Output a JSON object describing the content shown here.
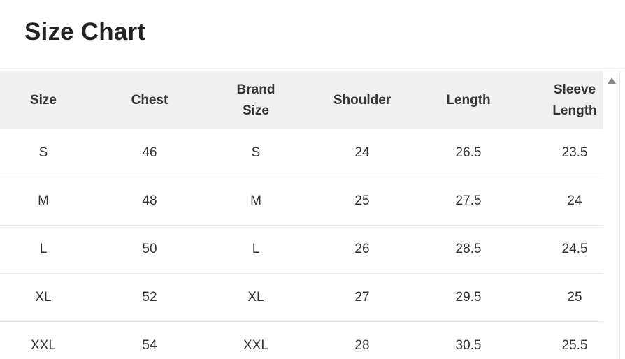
{
  "title": "Size Chart",
  "table": {
    "headers": [
      "Size",
      "Chest",
      "Brand\nSize",
      "Shoulder",
      "Length",
      "Sleeve\nLength"
    ],
    "rows": [
      [
        "S",
        "46",
        "S",
        "24",
        "26.5",
        "23.5"
      ],
      [
        "M",
        "48",
        "M",
        "25",
        "27.5",
        "24"
      ],
      [
        "L",
        "50",
        "L",
        "26",
        "28.5",
        "24.5"
      ],
      [
        "XL",
        "52",
        "XL",
        "27",
        "29.5",
        "25"
      ],
      [
        "XXL",
        "54",
        "XXL",
        "28",
        "30.5",
        "25.5"
      ]
    ]
  },
  "icons": {
    "scroll_up": "triangle-up-icon"
  }
}
